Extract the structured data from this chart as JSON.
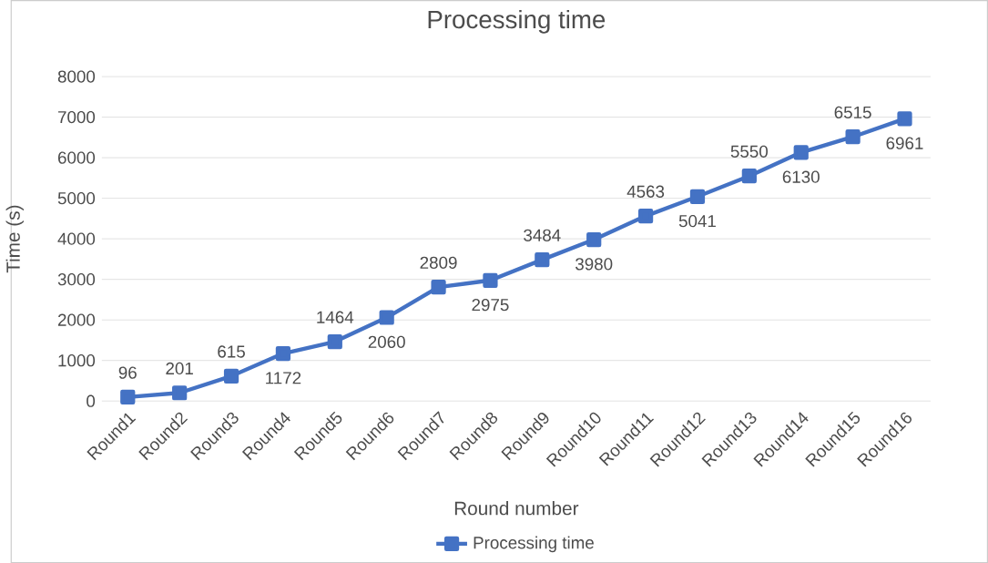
{
  "chart_data": {
    "type": "line",
    "title": "Processing time",
    "xlabel": "Round number",
    "ylabel": "Time (s)",
    "categories": [
      "Round1",
      "Round2",
      "Round3",
      "Round4",
      "Round5",
      "Round6",
      "Round7",
      "Round8",
      "Round9",
      "Round10",
      "Round11",
      "Round12",
      "Round13",
      "Round14",
      "Round15",
      "Round16"
    ],
    "series": [
      {
        "name": "Processing time",
        "color": "#4472c4",
        "values": [
          96,
          201,
          615,
          1172,
          1464,
          2060,
          2809,
          2975,
          3484,
          3980,
          4563,
          5041,
          5550,
          6130,
          6515,
          6961
        ]
      }
    ],
    "ylim": [
      0,
      8000
    ],
    "yticks": [
      0,
      1000,
      2000,
      3000,
      4000,
      5000,
      6000,
      7000,
      8000
    ],
    "grid": "y",
    "legend": "bottom",
    "marker": "square",
    "line_style": "solid",
    "data_labels": true
  }
}
